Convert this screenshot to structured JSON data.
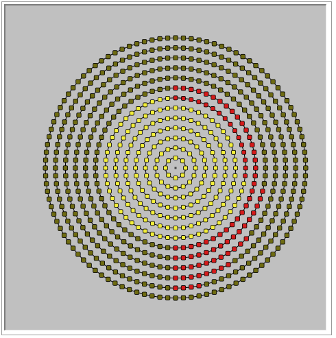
{
  "colors": {
    "background": "#c0c0c0",
    "ring_line": "#000000",
    "outline": "#000000",
    "olive": "#6e6b12",
    "red": "#d41b1b",
    "yellow": "#f2ee3a"
  },
  "rings": [
    {
      "count": 1,
      "color": "#000000"
    },
    {
      "count": 8,
      "color": "#f2ee3a"
    },
    {
      "count": 16,
      "color": "#f2ee3a"
    },
    {
      "count": 24,
      "color": "#f2ee3a"
    },
    {
      "count": 32,
      "color": "#f2ee3a"
    },
    {
      "count": 40,
      "color": "#f2ee3a"
    },
    {
      "count": 48,
      "color": "#f2ee3a"
    },
    {
      "count": 56,
      "color": "#f2ee3a",
      "red_from_deg": -105,
      "red_to_deg": 10
    },
    {
      "count": 64,
      "color": "#6e6b12",
      "red_from_deg": -100,
      "red_to_deg": 90
    },
    {
      "count": 72,
      "color": "#6e6b12",
      "red_from_deg": 12,
      "red_to_deg": 90
    },
    {
      "count": 80,
      "color": "#6e6b12",
      "red_from_deg": 45,
      "red_to_deg": 90
    },
    {
      "count": 88,
      "color": "#6e6b12",
      "red_from_deg": 58,
      "red_to_deg": 90
    },
    {
      "count": 96,
      "color": "#6e6b12",
      "red_from_deg": 78,
      "red_to_deg": 90
    },
    {
      "count": 104,
      "color": "#6e6b12"
    }
  ]
}
